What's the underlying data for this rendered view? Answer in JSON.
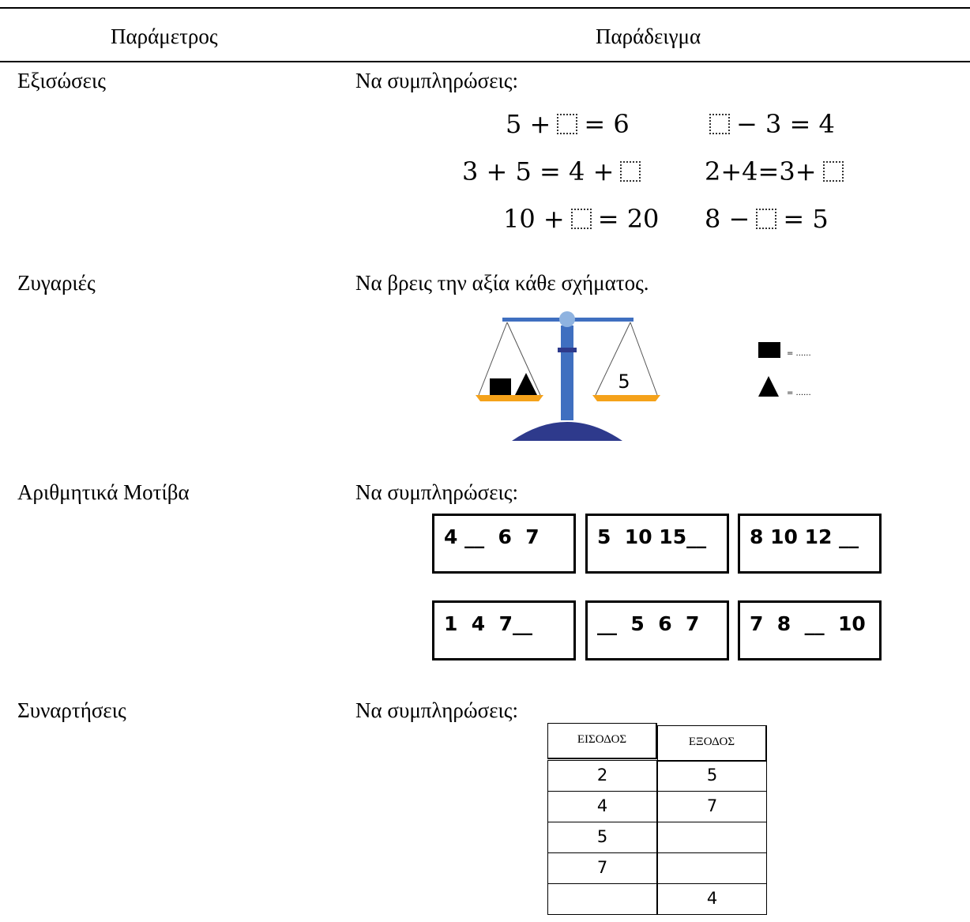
{
  "header": {
    "col1": "Παράμετρος",
    "col2": "Παράδειγμα"
  },
  "rows": [
    {
      "parameter": "Εξισώσεις",
      "instruction": "Να συμπληρώσεις:",
      "equations": [
        {
          "before": "5 +",
          "after": "= 6"
        },
        {
          "after": "− 3 = 4"
        },
        {
          "before": "3 + 5 = 4 +"
        },
        {
          "before": "2+4=3+"
        },
        {
          "before": "10 +",
          "after": "= 20"
        },
        {
          "before": "8 −",
          "after": "= 5"
        }
      ]
    },
    {
      "parameter": "Ζυγαριές",
      "instruction": "Να βρεις την αξία κάθε σχήματος.",
      "scale": {
        "right_pan": "5",
        "legend": [
          "= ......",
          "= ......"
        ]
      }
    },
    {
      "parameter": "Αριθμητικά Μοτίβα",
      "instruction": "Να συμπληρώσεις:",
      "patterns": [
        "4 __  6  7",
        "5  10 15__",
        "8 10 12 __",
        "1  4  7__",
        "__  5  6  7",
        "7  8  __  10"
      ]
    },
    {
      "parameter": "Συναρτήσεις",
      "instruction": "Να συμπληρώσεις:",
      "table": {
        "headers": [
          "ΕΙΣΟΔΟΣ",
          "ΕΞΟΔΟΣ"
        ],
        "rows": [
          [
            "2",
            "5"
          ],
          [
            "4",
            "7"
          ],
          [
            "5",
            null
          ],
          [
            "7",
            null
          ],
          [
            null,
            "4"
          ]
        ]
      }
    }
  ]
}
